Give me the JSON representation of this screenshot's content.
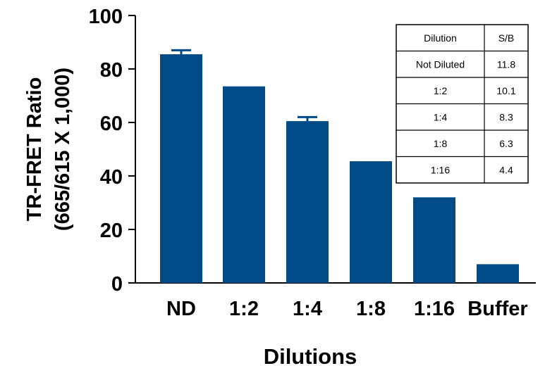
{
  "chart_data": {
    "type": "bar",
    "title": "",
    "categories": [
      "ND",
      "1:2",
      "1:4",
      "1:8",
      "1:16",
      "Buffer"
    ],
    "values": [
      85.5,
      73.5,
      60.5,
      45.5,
      32,
      7
    ],
    "error_upper": [
      87,
      null,
      62,
      null,
      null,
      null
    ],
    "xlabel": "Dilutions",
    "ylabel_line1": "TR-FRET Ratio",
    "ylabel_line2": "(665/615 X 1,000)",
    "ylim": [
      0,
      100
    ],
    "yticks": [
      0,
      20,
      40,
      60,
      80,
      100
    ],
    "grid": false,
    "bar_color": "#004a87",
    "inset_table": {
      "headers": [
        "Dilution",
        "S/B"
      ],
      "rows": [
        [
          "Not Diluted",
          "11.8"
        ],
        [
          "1:2",
          "10.1"
        ],
        [
          "1:4",
          "8.3"
        ],
        [
          "1:8",
          "6.3"
        ],
        [
          "1:16",
          "4.4"
        ]
      ]
    }
  }
}
